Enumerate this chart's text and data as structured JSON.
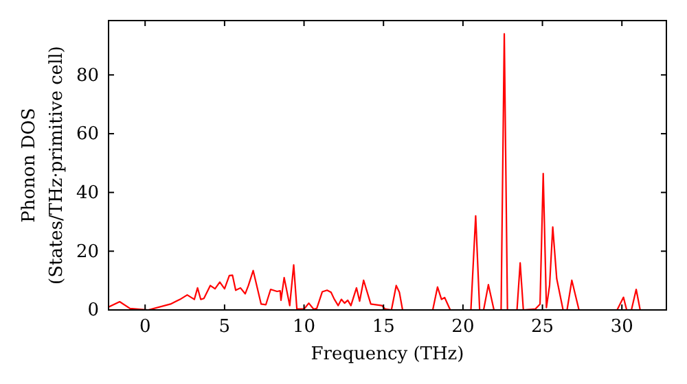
{
  "chart_data": {
    "type": "line",
    "xlabel": "Frequency (THz)",
    "ylabel": "Phonon DOS\n(States/THz·primitive cell)",
    "xlim": [
      -2.3,
      32.8
    ],
    "ylim": [
      0,
      98.5
    ],
    "xticks": [
      0,
      5,
      10,
      15,
      20,
      25,
      30
    ],
    "yticks": [
      0,
      20,
      40,
      60,
      80
    ],
    "line_style": "solid",
    "marker": "none",
    "series": [
      {
        "color": "#ff0000",
        "x": [
          -2.3,
          -1.6,
          -0.95,
          0.2,
          1.6,
          2.2,
          2.65,
          3.1,
          3.3,
          3.5,
          3.7,
          4.1,
          4.4,
          4.7,
          5.0,
          5.3,
          5.5,
          5.7,
          6.0,
          6.3,
          6.5,
          6.8,
          7.3,
          7.6,
          7.9,
          8.3,
          8.5,
          8.55,
          8.75,
          9.1,
          9.35,
          9.55,
          10.0,
          10.3,
          10.6,
          10.8,
          11.15,
          11.45,
          11.7,
          11.9,
          12.15,
          12.35,
          12.55,
          12.75,
          12.95,
          13.3,
          13.5,
          13.75,
          14.2,
          14.9,
          15.1,
          15.5,
          15.8,
          16.0,
          16.2,
          18.1,
          18.4,
          18.65,
          18.85,
          19.2,
          20.5,
          20.8,
          21.05,
          21.3,
          21.6,
          21.95,
          22.4,
          22.6,
          22.8,
          23.4,
          23.6,
          23.8,
          24.55,
          24.85,
          25.05,
          25.25,
          25.45,
          25.65,
          25.9,
          26.3,
          26.55,
          26.85,
          27.3,
          29.7,
          30.1,
          30.3,
          30.6,
          30.9,
          31.15,
          32.8
        ],
        "values": [
          1,
          2.8,
          0.5,
          0,
          2,
          3.6,
          5.1,
          3.6,
          7.5,
          3.6,
          3.9,
          8.3,
          7.2,
          9.5,
          7.2,
          11.7,
          11.8,
          6.7,
          7.5,
          5.5,
          8.3,
          13.4,
          2,
          1.8,
          7,
          6.3,
          6.5,
          3.3,
          11,
          1.5,
          15.3,
          0.3,
          0.3,
          2.3,
          0.3,
          0.5,
          6.2,
          6.7,
          6,
          3.7,
          1.5,
          3.6,
          2.3,
          3.3,
          1.5,
          7.5,
          3,
          10.1,
          2,
          1.5,
          0.3,
          0,
          8.3,
          6,
          0,
          0,
          7.8,
          3.6,
          4.2,
          0,
          0,
          32,
          0,
          0,
          8.6,
          0,
          0,
          94,
          0,
          0,
          16,
          0,
          0.3,
          2,
          46.4,
          0.8,
          8.3,
          28.2,
          10.6,
          0,
          0,
          10.1,
          0,
          0,
          4.3,
          0,
          0,
          7,
          0,
          0
        ]
      }
    ]
  }
}
